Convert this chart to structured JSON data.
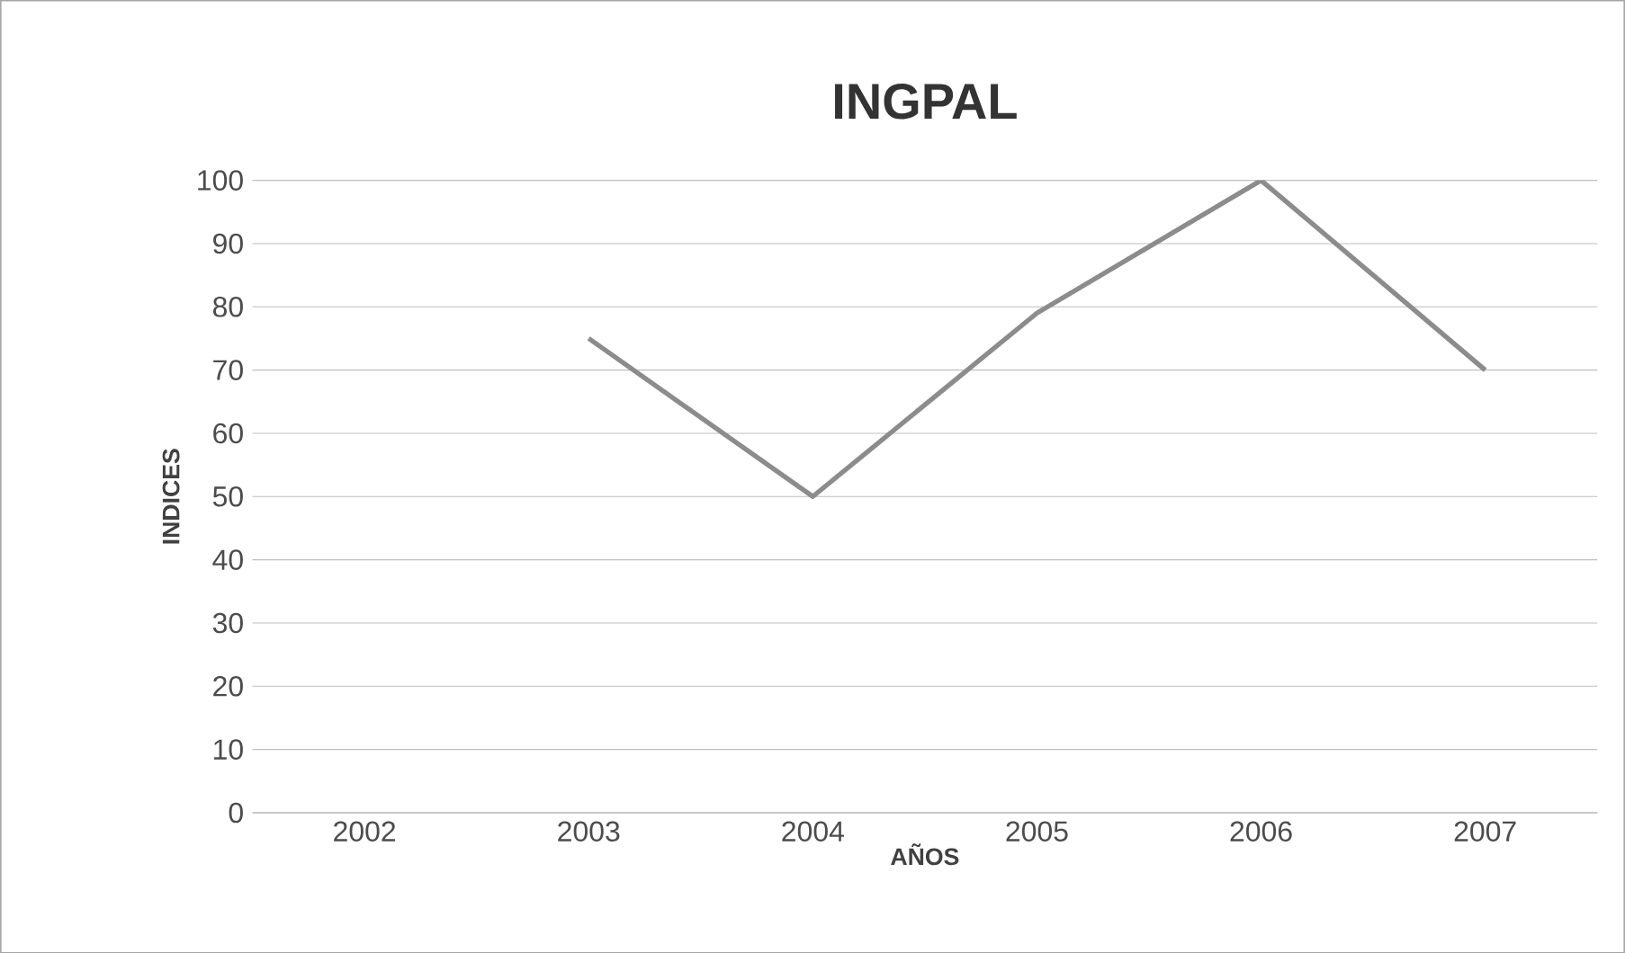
{
  "chart_data": {
    "type": "line",
    "title": "INGPAL",
    "xlabel": "AÑOS",
    "ylabel": "INDICES",
    "categories": [
      "2002",
      "2003",
      "2004",
      "2005",
      "2006",
      "2007"
    ],
    "values": [
      null,
      75,
      50,
      79,
      100,
      70
    ],
    "color": "#8c8c8c",
    "ylim": [
      0,
      100
    ],
    "yticks": [
      0,
      10,
      20,
      30,
      40,
      50,
      60,
      70,
      80,
      90,
      100
    ],
    "grid": "y",
    "marker": "none",
    "line_style": "solid"
  }
}
